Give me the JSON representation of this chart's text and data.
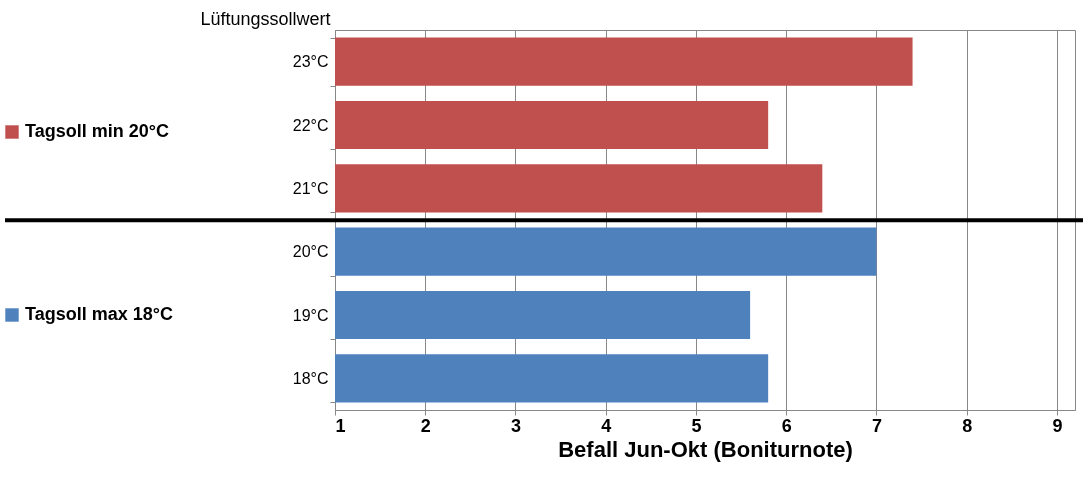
{
  "chart_data": {
    "type": "bar",
    "orientation": "horizontal",
    "categories": [
      "23°C",
      "22°C",
      "21°C",
      "20°C",
      "19°C",
      "18°C"
    ],
    "series": [
      {
        "name": "Tagsoll min 20°C",
        "color": "#c0504d",
        "values": [
          7.4,
          5.8,
          6.4,
          null,
          null,
          null
        ]
      },
      {
        "name": "Tagsoll max 18°C",
        "color": "#4f81bd",
        "values": [
          null,
          null,
          null,
          7.0,
          5.6,
          5.8
        ]
      }
    ],
    "xlabel": "Befall Jun-Okt (Boniturnote)",
    "ylabel": "Lüftungssollwert",
    "xlim": [
      1,
      9.2
    ],
    "xticks": [
      1,
      2,
      3,
      4,
      5,
      6,
      7,
      8,
      9
    ],
    "grid": "x",
    "legend": "left",
    "ref_lines": [
      {
        "axis": "y",
        "value": "20°C",
        "color": "#000000"
      }
    ]
  }
}
